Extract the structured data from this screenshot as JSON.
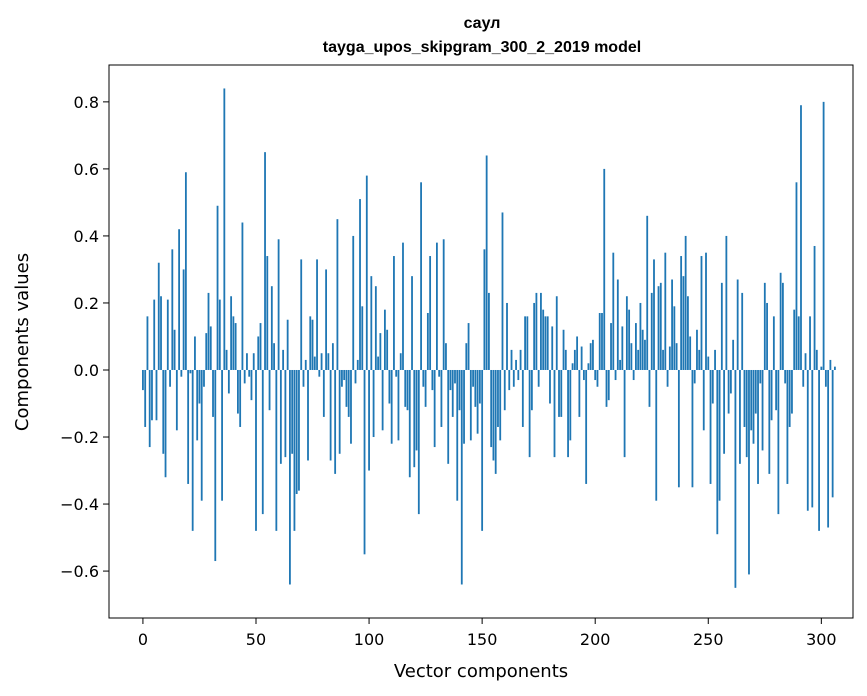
{
  "chart_data": {
    "type": "bar",
    "title": "саул",
    "subtitle": "tayga_upos_skipgram_300_2_2019 model",
    "xlabel": "Vector components",
    "ylabel": "Components values",
    "xlim": [
      -15,
      314
    ],
    "ylim": [
      -0.74,
      0.91
    ],
    "x_ticks": [
      0,
      50,
      100,
      150,
      200,
      250,
      300
    ],
    "y_ticks": [
      -0.6,
      -0.4,
      -0.2,
      0.0,
      0.2,
      0.4,
      0.6,
      0.8
    ],
    "y_tick_labels": [
      "−0.6",
      "−0.4",
      "−0.2",
      "0.0",
      "0.2",
      "0.4",
      "0.6",
      "0.8"
    ],
    "bar_color": "#1f77b4",
    "values": [
      -0.06,
      -0.17,
      0.16,
      -0.23,
      -0.15,
      0.21,
      -0.15,
      0.32,
      0.22,
      -0.25,
      -0.32,
      0.21,
      -0.05,
      0.36,
      0.12,
      -0.18,
      0.42,
      -0.02,
      0.3,
      0.59,
      -0.34,
      -0.01,
      -0.48,
      0.1,
      -0.21,
      -0.1,
      -0.39,
      -0.05,
      0.11,
      0.23,
      0.13,
      -0.14,
      -0.57,
      0.49,
      0.21,
      -0.39,
      0.84,
      0.06,
      -0.07,
      0.22,
      0.16,
      0.14,
      -0.13,
      -0.17,
      0.44,
      -0.04,
      0.05,
      -0.02,
      -0.09,
      0.05,
      -0.48,
      0.1,
      0.14,
      -0.43,
      0.65,
      0.34,
      -0.12,
      0.25,
      0.08,
      -0.48,
      0.39,
      -0.28,
      0.06,
      -0.26,
      0.15,
      -0.64,
      -0.25,
      -0.48,
      -0.37,
      -0.36,
      0.33,
      -0.05,
      0.03,
      -0.27,
      0.16,
      0.15,
      0.04,
      0.33,
      -0.02,
      0.05,
      -0.14,
      0.3,
      0.05,
      -0.27,
      0.08,
      -0.31,
      0.45,
      -0.25,
      -0.05,
      -0.03,
      -0.11,
      -0.14,
      -0.22,
      0.4,
      -0.04,
      0.03,
      0.51,
      0.19,
      -0.55,
      0.58,
      -0.3,
      0.28,
      -0.2,
      0.25,
      0.04,
      0.11,
      -0.18,
      0.18,
      0.12,
      -0.1,
      -0.22,
      0.34,
      -0.02,
      -0.21,
      0.05,
      0.38,
      -0.11,
      -0.12,
      -0.32,
      0.28,
      -0.29,
      -0.24,
      -0.43,
      0.56,
      -0.05,
      -0.11,
      0.17,
      0.34,
      -0.06,
      -0.23,
      0.38,
      -0.02,
      -0.17,
      0.39,
      0.08,
      -0.28,
      -0.06,
      -0.14,
      -0.04,
      -0.39,
      -0.12,
      -0.64,
      -0.22,
      0.08,
      0.14,
      -0.21,
      -0.05,
      -0.11,
      -0.19,
      -0.1,
      -0.48,
      0.36,
      0.64,
      0.23,
      -0.23,
      -0.27,
      -0.31,
      -0.17,
      -0.21,
      0.47,
      -0.12,
      0.2,
      -0.06,
      0.06,
      -0.05,
      0.03,
      -0.03,
      0.06,
      -0.17,
      0.16,
      0.16,
      -0.26,
      -0.12,
      0.2,
      0.23,
      -0.05,
      0.23,
      0.18,
      0.16,
      0.16,
      -0.1,
      0.13,
      -0.26,
      0.22,
      -0.14,
      -0.14,
      0.12,
      0.06,
      -0.26,
      -0.21,
      0.02,
      0.06,
      0.1,
      -0.14,
      0.07,
      -0.03,
      -0.34,
      0.02,
      0.08,
      0.09,
      -0.03,
      -0.05,
      0.17,
      0.17,
      0.6,
      -0.11,
      -0.09,
      0.14,
      0.35,
      -0.03,
      0.27,
      0.03,
      0.13,
      -0.26,
      0.22,
      0.18,
      0.08,
      -0.03,
      0.14,
      0.06,
      0.2,
      0.12,
      0.09,
      0.46,
      -0.11,
      0.23,
      0.33,
      -0.39,
      0.25,
      0.26,
      0.06,
      0.35,
      -0.05,
      0.07,
      0.27,
      0.19,
      0.08,
      -0.35,
      0.34,
      0.28,
      0.4,
      0.22,
      0.1,
      -0.35,
      -0.04,
      0.12,
      0.06,
      0.34,
      -0.18,
      0.35,
      0.04,
      -0.34,
      -0.1,
      0.06,
      -0.49,
      -0.39,
      0.26,
      -0.25,
      0.4,
      -0.13,
      -0.07,
      0.09,
      -0.65,
      0.27,
      -0.28,
      0.23,
      -0.17,
      -0.26,
      -0.61,
      -0.18,
      -0.22,
      -0.13,
      -0.34,
      -0.04,
      -0.24,
      0.26,
      0.2,
      -0.31,
      -0.15,
      0.16,
      -0.12,
      -0.43,
      0.29,
      0.26,
      -0.04,
      -0.34,
      -0.17,
      -0.13,
      0.18,
      0.56,
      0.16,
      0.79,
      -0.05,
      0.05,
      -0.42,
      0.16,
      -0.41,
      0.37,
      0.06,
      -0.48,
      0.01,
      0.8,
      -0.05,
      -0.47,
      0.03,
      -0.38,
      0.01
    ]
  }
}
